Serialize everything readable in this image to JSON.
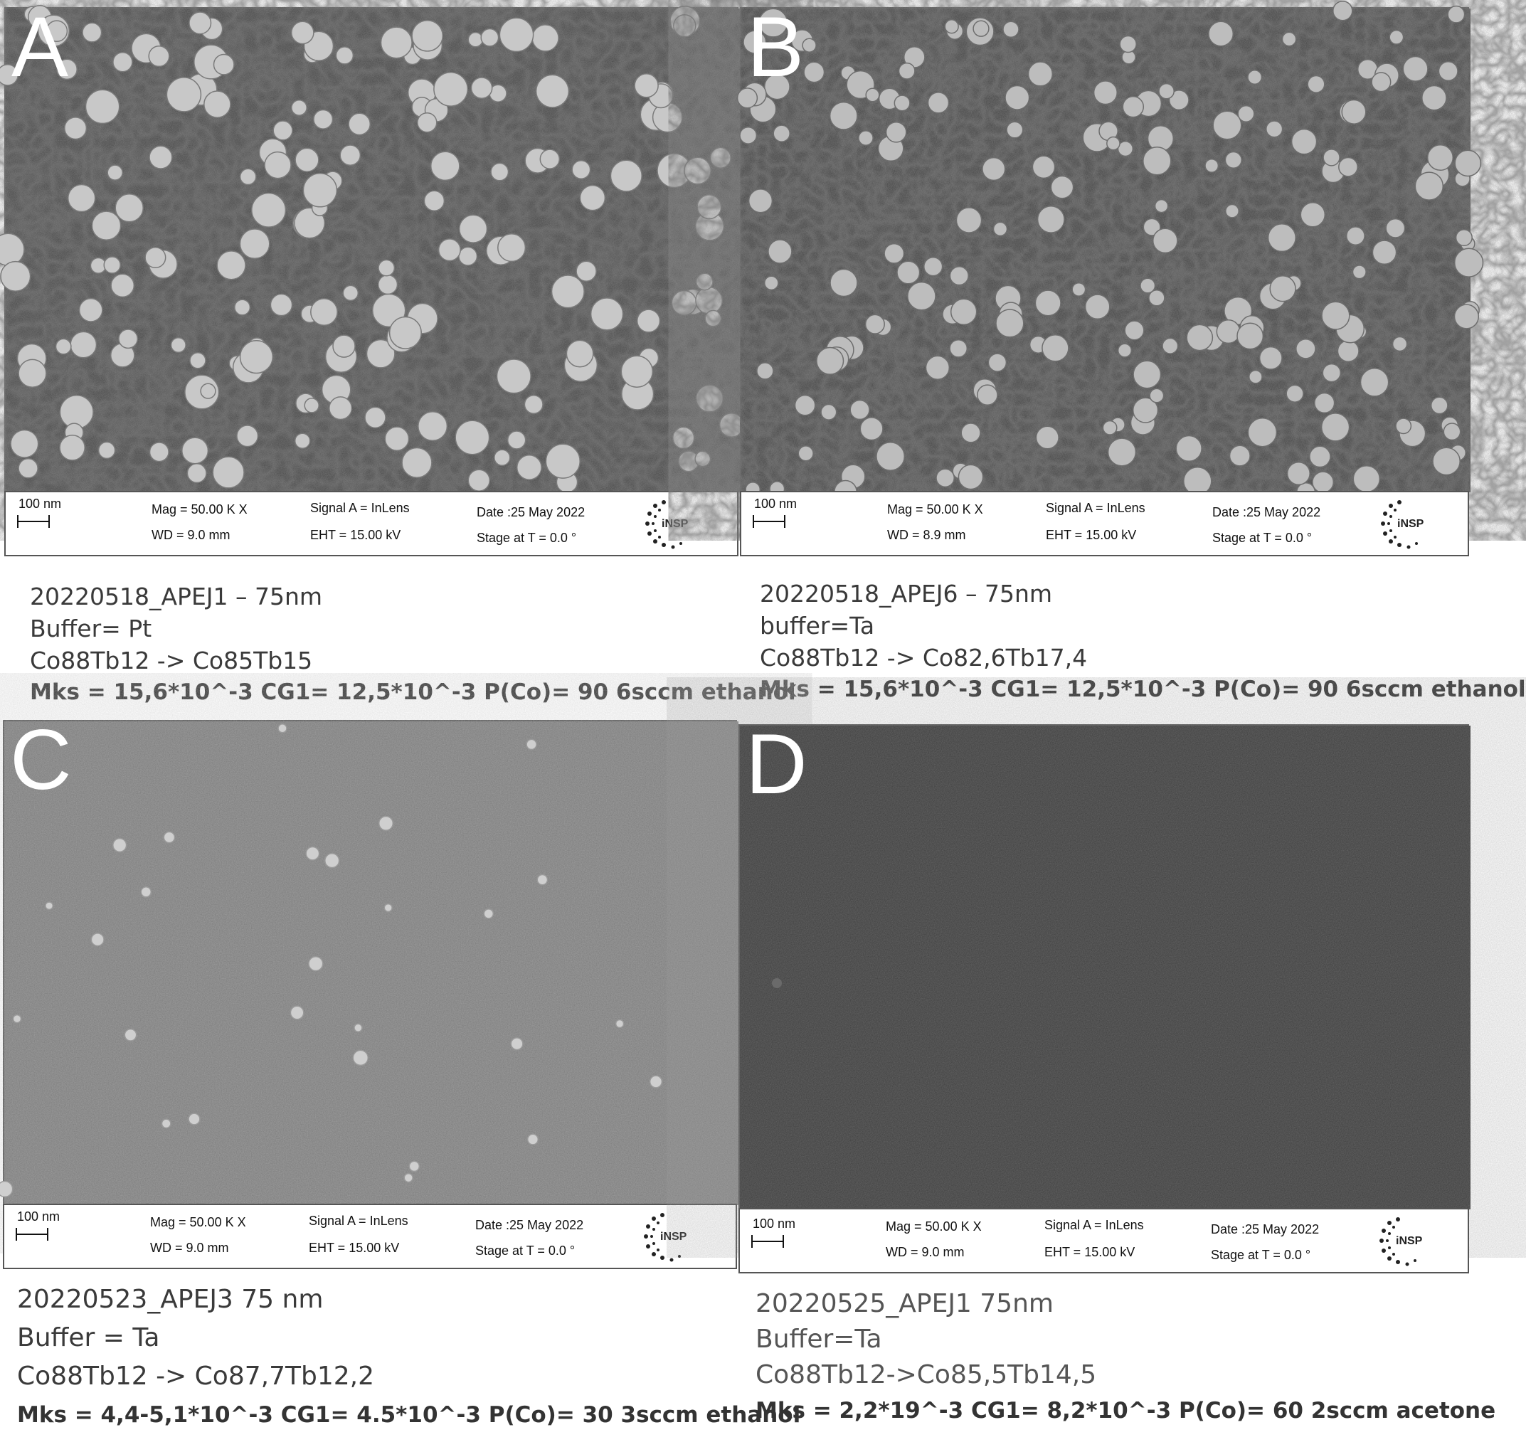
{
  "panels": [
    {
      "letter": "A",
      "scale": "100 nm",
      "mag": "Mag =   50.00 K X",
      "wd": "WD =  9.0 mm",
      "signal": "Signal A = InLens",
      "eht": "EHT = 15.00 kV",
      "date": "Date :25 May 2022",
      "stage": "Stage at T =   0.0 °",
      "caption": [
        "20220518_APEJ1 – 75nm",
        "Buffer= Pt",
        "Co88Tb12 -> Co85Tb15",
        "Mks = 15,6*10^-3 CG1= 12,5*10^-3 P(Co)= 90 6sccm ethanol"
      ]
    },
    {
      "letter": "B",
      "scale": "100 nm",
      "mag": "Mag =   50.00 K X",
      "wd": "WD =  8.9 mm",
      "signal": "Signal A = InLens",
      "eht": "EHT = 15.00 kV",
      "date": "Date :25 May 2022",
      "stage": "Stage at T =   0.0 °",
      "caption": [
        "20220518_APEJ6 – 75nm",
        "buffer=Ta",
        "Co88Tb12 -> Co82,6Tb17,4",
        "Mks = 15,6*10^-3 CG1= 12,5*10^-3 P(Co)= 90 6sccm ethanol"
      ]
    },
    {
      "letter": "C",
      "scale": "100 nm",
      "mag": "Mag =   50.00 K X",
      "wd": "WD =  9.0 mm",
      "signal": "Signal A = InLens",
      "eht": "EHT = 15.00 kV",
      "date": "Date :25 May 2022",
      "stage": "Stage at T =   0.0 °",
      "caption": [
        "20220523_APEJ3 75 nm",
        "Buffer = Ta",
        "Co88Tb12 -> Co87,7Tb12,2",
        "Mks = 4,4-5,1*10^-3 CG1= 4.5*10^-3 P(Co)= 30 3sccm ethanol"
      ]
    },
    {
      "letter": "D",
      "scale": "100 nm",
      "mag": "Mag =   50.00 K X",
      "wd": "WD =  9.0 mm",
      "signal": "Signal A = InLens",
      "eht": "EHT = 15.00 kV",
      "date": "Date :25 May 2022",
      "stage": "Stage at T =   0.0 °",
      "caption": [
        "20220525_APEJ1 75nm",
        "Buffer=Ta",
        "Co88Tb12->Co85,5Tb14,5",
        "Mks = 2,2*19^-3 CG1= 8,2*10^-3 P(Co)= 60 2sccm acetone"
      ]
    }
  ],
  "colors": {
    "sem_dark": "#4a4a4a",
    "sem_light": "#7c7c7c",
    "sem_d": "#3c3c3c",
    "particle": "#d8d8d8"
  }
}
